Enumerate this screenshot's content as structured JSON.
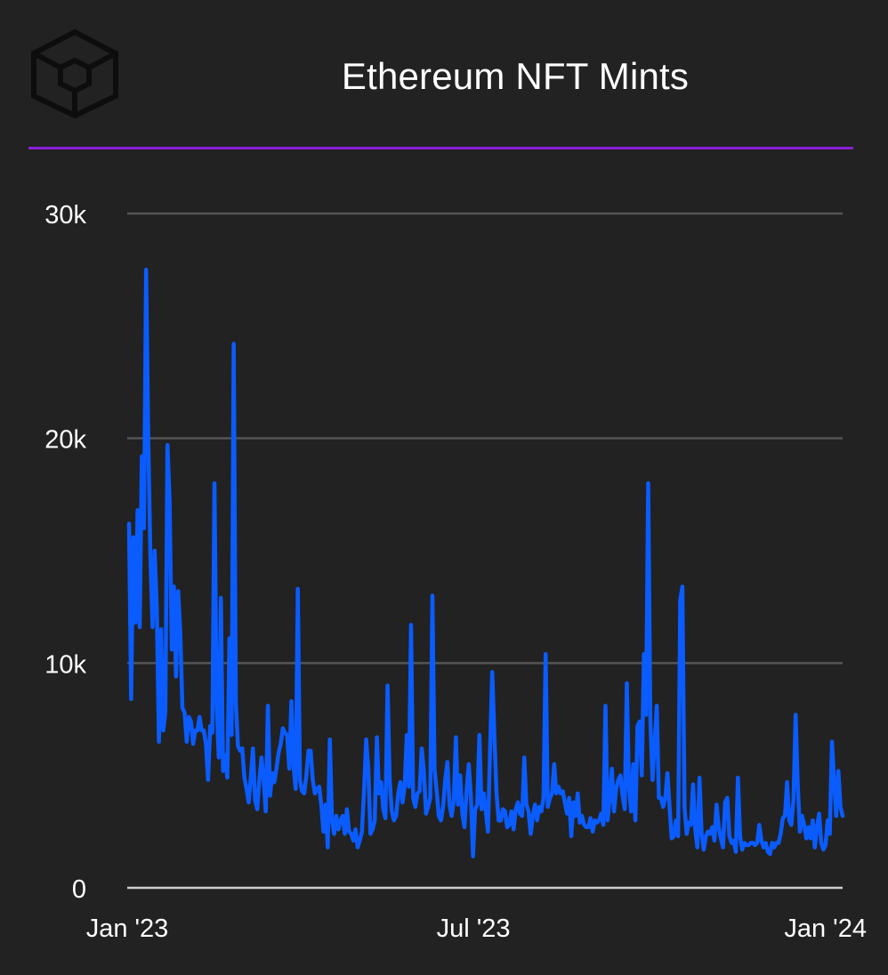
{
  "header": {
    "title": "Ethereum NFT Mints",
    "logo_icon": "cube-logo-icon",
    "accent_color": "#8a1fd6"
  },
  "chart_data": {
    "type": "line",
    "title": "Ethereum NFT Mints",
    "xlabel": "",
    "ylabel": "",
    "ylim": [
      0,
      30000
    ],
    "yticks": [
      "0",
      "10k",
      "20k",
      "30k"
    ],
    "xticks": [
      "Jan '23",
      "Jul '23",
      "Jan '24"
    ],
    "x_range": [
      "2023-01-01",
      "2024-01-10"
    ],
    "grid": true,
    "line_color": "#0a5cff",
    "series": [
      {
        "values": [
          16200,
          8400,
          15600,
          11800,
          16800,
          11600,
          19200,
          16000,
          27500,
          20000,
          14800,
          11600,
          15000,
          12400,
          6500,
          11500,
          7000,
          7800,
          19700,
          17200,
          10600,
          13400,
          9400,
          13200,
          11300,
          8000,
          7800,
          6500,
          7600,
          7400,
          6400,
          7000,
          7000,
          7600,
          7000,
          7000,
          6400,
          4800,
          7200,
          6900,
          18000,
          8200,
          5800,
          12900,
          5200,
          5900,
          4900,
          11100,
          6800,
          24200,
          8200,
          6300,
          6100,
          6200,
          4900,
          4400,
          3800,
          4900,
          6200,
          3900,
          3500,
          4800,
          5800,
          4800,
          3400,
          8100,
          4100,
          5100,
          4700,
          5300,
          6000,
          6400,
          7100,
          6900,
          6800,
          5300,
          8300,
          5400,
          4400,
          13300,
          4800,
          4300,
          4200,
          5000,
          6100,
          6100,
          4800,
          4200,
          4400,
          4500,
          3700,
          2500,
          3700,
          1800,
          6600,
          3000,
          2400,
          3200,
          2600,
          3000,
          3200,
          2400,
          3500,
          2500,
          2400,
          2100,
          2600,
          1800,
          2100,
          2500,
          4300,
          6600,
          5300,
          2400,
          2600,
          3000,
          6700,
          4200,
          4700,
          3500,
          3100,
          9000,
          4800,
          3400,
          3000,
          3200,
          4200,
          4700,
          3800,
          4500,
          6800,
          4500,
          11700,
          4000,
          3600,
          4200,
          4300,
          6200,
          5200,
          3300,
          3600,
          4000,
          13000,
          5300,
          4300,
          3200,
          3000,
          3600,
          4800,
          5600,
          3700,
          3200,
          3900,
          6700,
          3700,
          5000,
          3300,
          2700,
          4300,
          5500,
          4100,
          1400,
          3500,
          3700,
          6800,
          3500,
          4200,
          3400,
          2500,
          6200,
          9600,
          6800,
          4200,
          3000,
          3000,
          3500,
          3400,
          2700,
          2800,
          3400,
          2600,
          3500,
          3800,
          3300,
          3200,
          5800,
          3700,
          3400,
          2400,
          3200,
          3700,
          3000,
          3600,
          3400,
          4000,
          10400,
          3600,
          4000,
          4200,
          5500,
          4200,
          4500,
          4200,
          4300,
          3800,
          3300,
          4000,
          2300,
          3800,
          3200,
          4200,
          2900,
          3200,
          2800,
          2700,
          2700,
          3100,
          2500,
          3000,
          2900,
          3000,
          3300,
          2800,
          8100,
          3000,
          4000,
          5300,
          3400,
          4400,
          4800,
          5000,
          4100,
          3500,
          9100,
          4500,
          3400,
          5500,
          3000,
          7200,
          7400,
          5000,
          10400,
          7700,
          18000,
          7500,
          4800,
          6400,
          8100,
          4000,
          4000,
          3600,
          4000,
          5100,
          3600,
          2200,
          2300,
          3000,
          2300,
          12800,
          13400,
          3600,
          2400,
          2900,
          2800,
          4600,
          2600,
          1800,
          4900,
          2400,
          1700,
          2300,
          2500,
          2400,
          2700,
          2100,
          3700,
          2700,
          2200,
          1800,
          3800,
          4000,
          2300,
          2000,
          2100,
          1600,
          4900,
          2300,
          1700,
          2000,
          1900,
          1900,
          2000,
          2000,
          1900,
          2000,
          2800,
          2100,
          1800,
          2000,
          1600,
          1500,
          2000,
          1800,
          2000,
          2000,
          2400,
          3100,
          3200,
          4700,
          3000,
          2800,
          3900,
          7700,
          4600,
          2500,
          3200,
          2800,
          2200,
          2700,
          2200,
          3000,
          1800,
          2700,
          3300,
          2000,
          1700,
          1900,
          3000,
          2400,
          6500,
          4800,
          3200,
          5200,
          3600,
          3200
        ]
      }
    ]
  }
}
